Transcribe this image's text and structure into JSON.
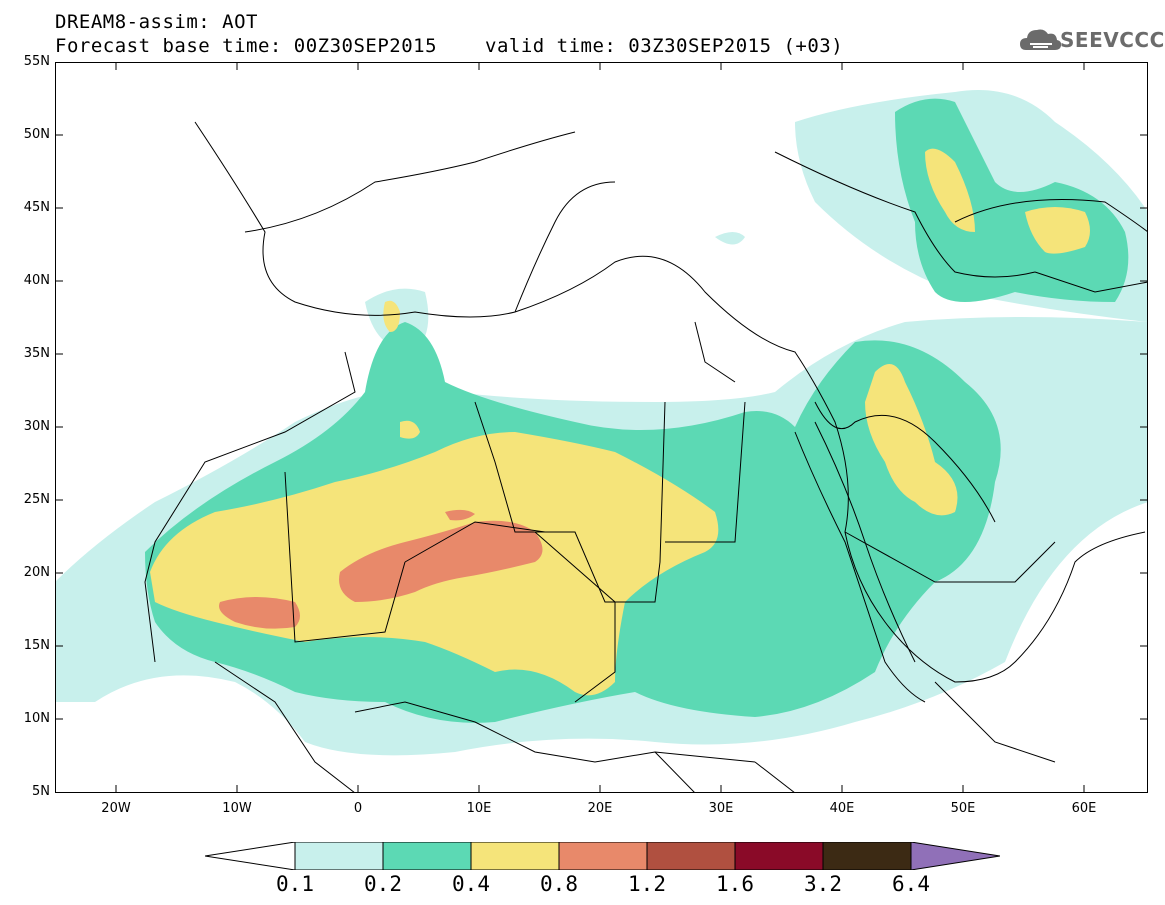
{
  "header": {
    "line1": "DREAM8-assim: AOT",
    "line2a": "Forecast base time: 00Z30SEP2015",
    "line2b": "valid time: 03Z30SEP2015 (+03)",
    "logo_text": "SEEVCCC",
    "logo_icon": "cloud-icon"
  },
  "axes": {
    "lat_labels": [
      "55N",
      "50N",
      "45N",
      "40N",
      "35N",
      "30N",
      "25N",
      "20N",
      "15N",
      "10N",
      "5N"
    ],
    "lon_labels": [
      "20W",
      "10W",
      "0",
      "10E",
      "20E",
      "30E",
      "40E",
      "50E",
      "60E"
    ],
    "lat_range": [
      5,
      55
    ],
    "lon_range": [
      -25,
      65
    ]
  },
  "legend": {
    "labels": [
      "0.1",
      "0.2",
      "0.4",
      "0.8",
      "1.2",
      "1.6",
      "3.2",
      "6.4"
    ],
    "colors": [
      "#ffffff",
      "#c8f0ec",
      "#5cd9b4",
      "#f5e47a",
      "#e8896a",
      "#b05040",
      "#8a0a28",
      "#3c2a14",
      "#9070b8"
    ]
  }
}
